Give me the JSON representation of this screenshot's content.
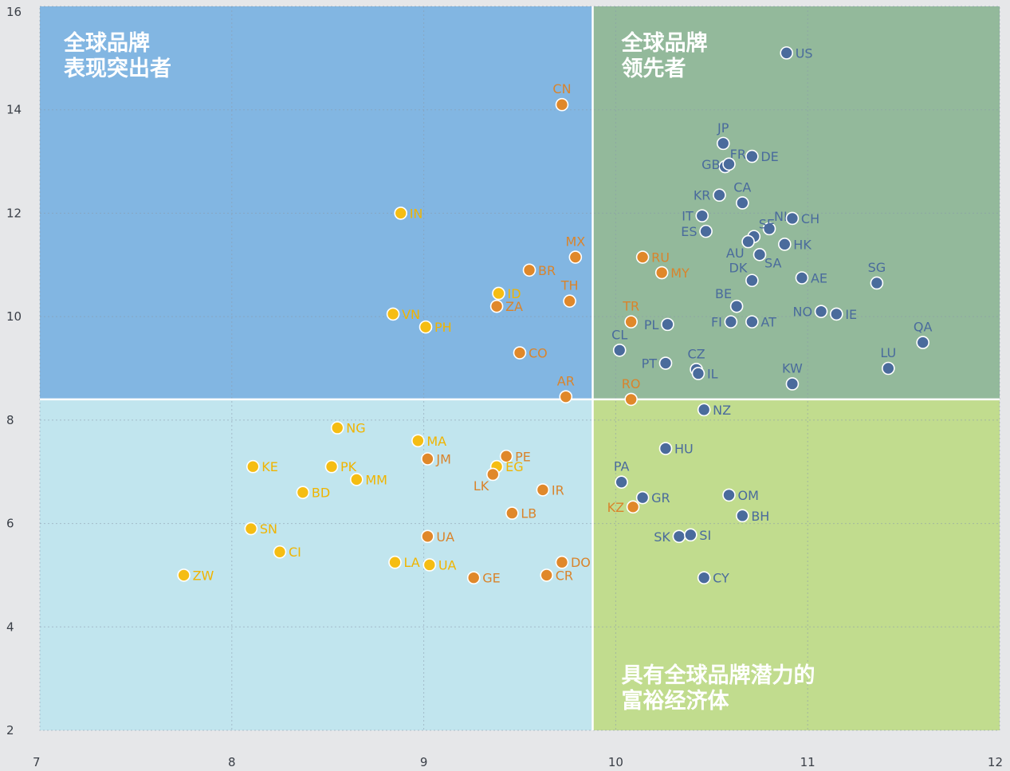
{
  "chart_data": {
    "type": "scatter",
    "title": "",
    "xlabel": "",
    "ylabel": "",
    "xlim": [
      7,
      12
    ],
    "ylim": [
      2,
      16
    ],
    "x_ticks": [
      7,
      8,
      9,
      10,
      11,
      12
    ],
    "y_ticks": [
      2,
      4,
      6,
      8,
      10,
      12,
      14,
      16
    ],
    "grid": true,
    "quadrant_split": {
      "x": 9.88,
      "y": 8.4
    },
    "quadrants": [
      {
        "key": "top_left",
        "color": "#82b6e2",
        "label_lines": [
          "全球品牌",
          "表现突出者"
        ]
      },
      {
        "key": "top_right",
        "color": "#93b99b",
        "label_lines": [
          "全球品牌",
          "领先者"
        ]
      },
      {
        "key": "bottom_left",
        "color": "#c1e5ee",
        "label_lines": []
      },
      {
        "key": "bottom_right",
        "color": "#c1dc8e",
        "label_lines": [
          "具有全球品牌潜力的",
          "富裕经济体"
        ]
      }
    ],
    "marker_colors": {
      "blue": "#4a6b9c",
      "orange": "#e0882a",
      "yellow": "#f5bd13"
    },
    "label_colors": {
      "blue": "#4a6b9c",
      "orange": "#d9842c",
      "yellow": "#f0b400"
    },
    "points": [
      {
        "label": "US",
        "x": 10.89,
        "y": 15.1,
        "c": "blue",
        "pos": "right"
      },
      {
        "label": "CN",
        "x": 9.72,
        "y": 14.1,
        "c": "orange",
        "pos": "top"
      },
      {
        "label": "JP",
        "x": 10.56,
        "y": 13.35,
        "c": "blue",
        "pos": "top"
      },
      {
        "label": "FR",
        "x": 10.57,
        "y": 12.9,
        "c": "blue",
        "pos": "topright"
      },
      {
        "label": "GB",
        "x": 10.59,
        "y": 12.95,
        "c": "blue",
        "pos": "left"
      },
      {
        "label": "DE",
        "x": 10.71,
        "y": 13.1,
        "c": "blue",
        "pos": "right"
      },
      {
        "label": "KR",
        "x": 10.54,
        "y": 12.35,
        "c": "blue",
        "pos": "left"
      },
      {
        "label": "CA",
        "x": 10.66,
        "y": 12.2,
        "c": "blue",
        "pos": "top"
      },
      {
        "label": "IN",
        "x": 8.88,
        "y": 12.0,
        "c": "yellow",
        "pos": "right"
      },
      {
        "label": "IT",
        "x": 10.45,
        "y": 11.95,
        "c": "blue",
        "pos": "left"
      },
      {
        "label": "NL",
        "x": 10.8,
        "y": 11.7,
        "c": "blue",
        "pos": "topright"
      },
      {
        "label": "CH",
        "x": 10.92,
        "y": 11.9,
        "c": "blue",
        "pos": "right"
      },
      {
        "label": "ES",
        "x": 10.47,
        "y": 11.65,
        "c": "blue",
        "pos": "left"
      },
      {
        "label": "SE",
        "x": 10.72,
        "y": 11.55,
        "c": "blue",
        "pos": "topright"
      },
      {
        "label": "AU",
        "x": 10.69,
        "y": 11.45,
        "c": "blue",
        "pos": "bottomleft"
      },
      {
        "label": "HK",
        "x": 10.88,
        "y": 11.4,
        "c": "blue",
        "pos": "right"
      },
      {
        "label": "SA",
        "x": 10.75,
        "y": 11.2,
        "c": "blue",
        "pos": "bottomright"
      },
      {
        "label": "MX",
        "x": 9.79,
        "y": 11.15,
        "c": "orange",
        "pos": "top"
      },
      {
        "label": "RU",
        "x": 10.14,
        "y": 11.15,
        "c": "orange",
        "pos": "right"
      },
      {
        "label": "BR",
        "x": 9.55,
        "y": 10.9,
        "c": "orange",
        "pos": "right"
      },
      {
        "label": "MY",
        "x": 10.24,
        "y": 10.85,
        "c": "orange",
        "pos": "right"
      },
      {
        "label": "DK",
        "x": 10.71,
        "y": 10.7,
        "c": "blue",
        "pos": "topleft"
      },
      {
        "label": "AE",
        "x": 10.97,
        "y": 10.75,
        "c": "blue",
        "pos": "right"
      },
      {
        "label": "SG",
        "x": 11.36,
        "y": 10.65,
        "c": "blue",
        "pos": "top"
      },
      {
        "label": "ID",
        "x": 9.39,
        "y": 10.45,
        "c": "yellow",
        "pos": "right"
      },
      {
        "label": "TH",
        "x": 9.76,
        "y": 10.3,
        "c": "orange",
        "pos": "top"
      },
      {
        "label": "ZA",
        "x": 9.38,
        "y": 10.2,
        "c": "orange",
        "pos": "right"
      },
      {
        "label": "BE",
        "x": 10.63,
        "y": 10.2,
        "c": "blue",
        "pos": "topleft"
      },
      {
        "label": "NO",
        "x": 11.07,
        "y": 10.1,
        "c": "blue",
        "pos": "left"
      },
      {
        "label": "IE",
        "x": 11.15,
        "y": 10.05,
        "c": "blue",
        "pos": "right"
      },
      {
        "label": "VN",
        "x": 8.84,
        "y": 10.05,
        "c": "yellow",
        "pos": "right"
      },
      {
        "label": "TR",
        "x": 10.08,
        "y": 9.9,
        "c": "orange",
        "pos": "top"
      },
      {
        "label": "PL",
        "x": 10.27,
        "y": 9.85,
        "c": "blue",
        "pos": "left"
      },
      {
        "label": "FI",
        "x": 10.6,
        "y": 9.9,
        "c": "blue",
        "pos": "left"
      },
      {
        "label": "AT",
        "x": 10.71,
        "y": 9.9,
        "c": "blue",
        "pos": "right"
      },
      {
        "label": "PH",
        "x": 9.01,
        "y": 9.8,
        "c": "yellow",
        "pos": "right"
      },
      {
        "label": "QA",
        "x": 11.6,
        "y": 9.5,
        "c": "blue",
        "pos": "top"
      },
      {
        "label": "CL",
        "x": 10.02,
        "y": 9.35,
        "c": "blue",
        "pos": "top"
      },
      {
        "label": "CO",
        "x": 9.5,
        "y": 9.3,
        "c": "orange",
        "pos": "right"
      },
      {
        "label": "PT",
        "x": 10.26,
        "y": 9.1,
        "c": "blue",
        "pos": "left"
      },
      {
        "label": "CZ",
        "x": 10.42,
        "y": 8.98,
        "c": "blue",
        "pos": "top"
      },
      {
        "label": "IL",
        "x": 10.43,
        "y": 8.9,
        "c": "blue",
        "pos": "right"
      },
      {
        "label": "LU",
        "x": 11.42,
        "y": 9.0,
        "c": "blue",
        "pos": "top"
      },
      {
        "label": "KW",
        "x": 10.92,
        "y": 8.7,
        "c": "blue",
        "pos": "top"
      },
      {
        "label": "AR",
        "x": 9.74,
        "y": 8.45,
        "c": "orange",
        "pos": "top"
      },
      {
        "label": "RO",
        "x": 10.08,
        "y": 8.4,
        "c": "orange",
        "pos": "top"
      },
      {
        "label": "NZ",
        "x": 10.46,
        "y": 8.2,
        "c": "blue",
        "pos": "right"
      },
      {
        "label": "NG",
        "x": 8.55,
        "y": 7.85,
        "c": "yellow",
        "pos": "right"
      },
      {
        "label": "MA",
        "x": 8.97,
        "y": 7.6,
        "c": "yellow",
        "pos": "right"
      },
      {
        "label": "HU",
        "x": 10.26,
        "y": 7.45,
        "c": "blue",
        "pos": "right"
      },
      {
        "label": "PE",
        "x": 9.43,
        "y": 7.3,
        "c": "orange",
        "pos": "right"
      },
      {
        "label": "JM",
        "x": 9.02,
        "y": 7.25,
        "c": "orange",
        "pos": "right"
      },
      {
        "label": "KE",
        "x": 8.11,
        "y": 7.1,
        "c": "yellow",
        "pos": "right"
      },
      {
        "label": "PK",
        "x": 8.52,
        "y": 7.1,
        "c": "yellow",
        "pos": "right"
      },
      {
        "label": "EG",
        "x": 9.38,
        "y": 7.1,
        "c": "yellow",
        "pos": "right"
      },
      {
        "label": "LK",
        "x": 9.36,
        "y": 6.95,
        "c": "orange",
        "pos": "bottomleft"
      },
      {
        "label": "MM",
        "x": 8.65,
        "y": 6.85,
        "c": "yellow",
        "pos": "right"
      },
      {
        "label": "PA",
        "x": 10.03,
        "y": 6.8,
        "c": "blue",
        "pos": "top"
      },
      {
        "label": "BD",
        "x": 8.37,
        "y": 6.6,
        "c": "yellow",
        "pos": "right"
      },
      {
        "label": "IR",
        "x": 9.62,
        "y": 6.65,
        "c": "orange",
        "pos": "right"
      },
      {
        "label": "GR",
        "x": 10.14,
        "y": 6.5,
        "c": "blue",
        "pos": "right"
      },
      {
        "label": "OM",
        "x": 10.59,
        "y": 6.55,
        "c": "blue",
        "pos": "right"
      },
      {
        "label": "KZ",
        "x": 10.09,
        "y": 6.32,
        "c": "orange",
        "pos": "left"
      },
      {
        "label": "LB",
        "x": 9.46,
        "y": 6.2,
        "c": "orange",
        "pos": "right"
      },
      {
        "label": "BH",
        "x": 10.66,
        "y": 6.15,
        "c": "blue",
        "pos": "right"
      },
      {
        "label": "SN",
        "x": 8.1,
        "y": 5.9,
        "c": "yellow",
        "pos": "right"
      },
      {
        "label": "UA",
        "x": 9.02,
        "y": 5.75,
        "c": "orange",
        "pos": "right"
      },
      {
        "label": "SK",
        "x": 10.33,
        "y": 5.75,
        "c": "blue",
        "pos": "left"
      },
      {
        "label": "SI",
        "x": 10.39,
        "y": 5.78,
        "c": "blue",
        "pos": "right"
      },
      {
        "label": "CI",
        "x": 8.25,
        "y": 5.45,
        "c": "yellow",
        "pos": "right"
      },
      {
        "label": "LA",
        "x": 8.85,
        "y": 5.25,
        "c": "yellow",
        "pos": "right"
      },
      {
        "label": "UA",
        "x": 9.03,
        "y": 5.2,
        "c": "yellow",
        "pos": "right"
      },
      {
        "label": "DO",
        "x": 9.72,
        "y": 5.25,
        "c": "orange",
        "pos": "right"
      },
      {
        "label": "ZW",
        "x": 7.75,
        "y": 5.0,
        "c": "yellow",
        "pos": "right"
      },
      {
        "label": "CR",
        "x": 9.64,
        "y": 5.0,
        "c": "orange",
        "pos": "right"
      },
      {
        "label": "GE",
        "x": 9.26,
        "y": 4.95,
        "c": "orange",
        "pos": "right"
      },
      {
        "label": "CY",
        "x": 10.46,
        "y": 4.95,
        "c": "blue",
        "pos": "right"
      }
    ]
  }
}
